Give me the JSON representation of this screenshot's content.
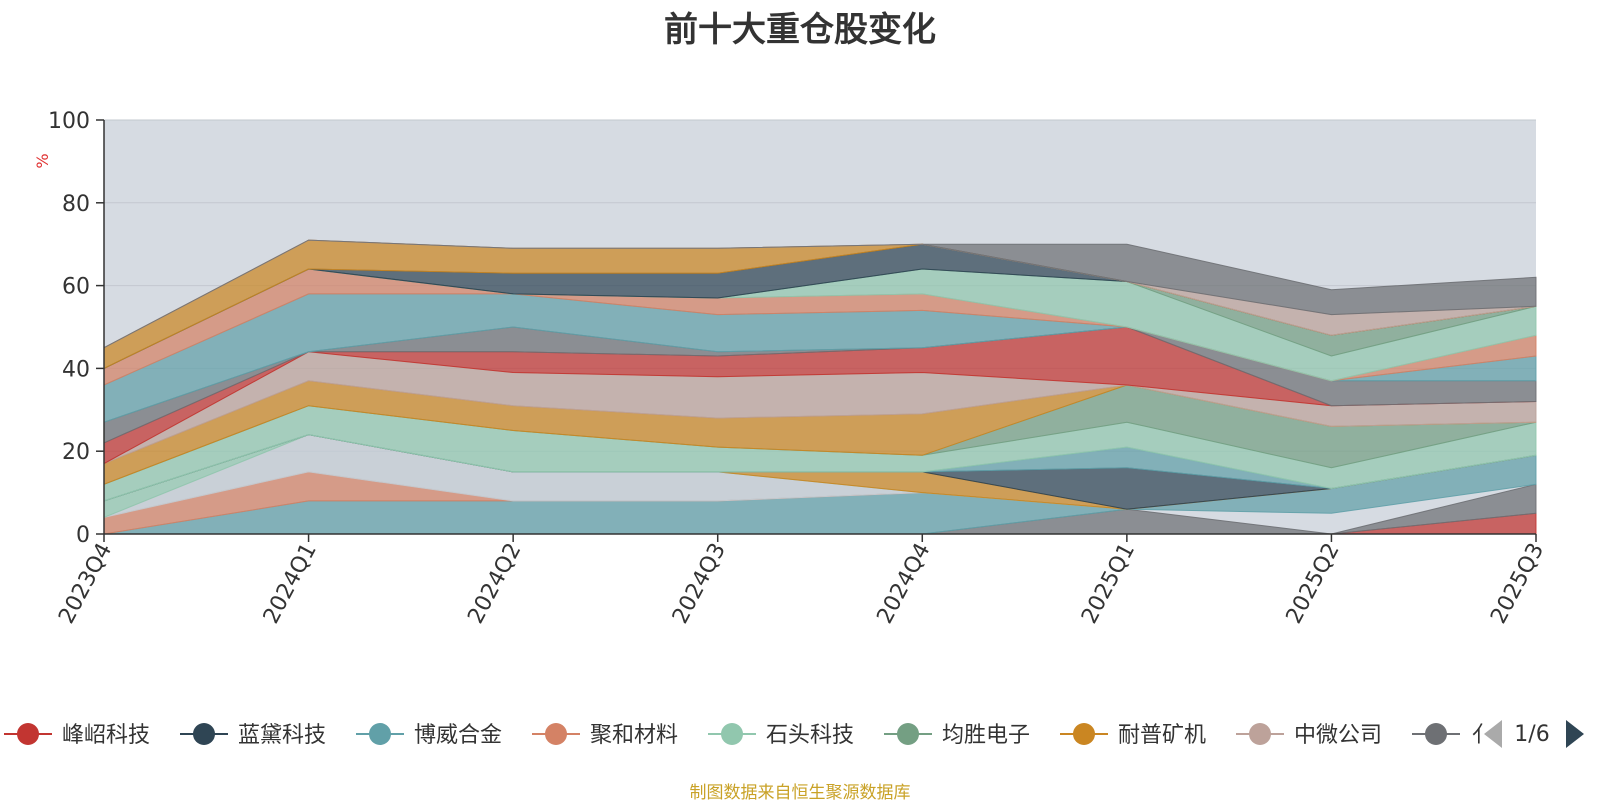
{
  "chart_data": {
    "type": "area",
    "title": "前十大重仓股变化",
    "ylabel": "%",
    "ylim": [
      0,
      100
    ],
    "yticks": [
      0,
      20,
      40,
      60,
      80,
      100
    ],
    "categories": [
      "2023Q4",
      "2024Q1",
      "2024Q2",
      "2024Q3",
      "2024Q4",
      "2025Q1",
      "2025Q2",
      "2025Q3"
    ],
    "grid": true,
    "legend_position": "bottom",
    "legend_page": "1/6",
    "layers": [
      {
        "name": "",
        "color": "#c23531",
        "lower": [
          0,
          0,
          0,
          0,
          0,
          0,
          0,
          0
        ],
        "upper": [
          0,
          0,
          0,
          0,
          0,
          0,
          0,
          5
        ]
      },
      {
        "name": "",
        "color": "#6e7074",
        "lower": [
          0,
          0,
          0,
          0,
          0,
          0,
          0,
          5
        ],
        "upper": [
          0,
          0,
          0,
          0,
          0,
          6,
          0,
          12
        ]
      },
      {
        "name": "",
        "color": "#61a0a8",
        "lower": [
          0,
          0,
          0,
          0,
          0,
          6,
          5,
          12
        ],
        "upper": [
          0,
          8,
          8,
          8,
          10,
          6,
          11,
          19
        ]
      },
      {
        "name": "",
        "color": "#d48265",
        "lower": [
          0,
          8,
          8,
          8,
          10,
          6,
          11,
          19
        ],
        "upper": [
          4,
          15,
          8,
          8,
          10,
          6,
          11,
          19
        ]
      },
      {
        "name": "",
        "color": "#c4ccd3",
        "lower": [
          4,
          15,
          8,
          8,
          10,
          6,
          11,
          19
        ],
        "upper": [
          4,
          24,
          15,
          15,
          10,
          6,
          11,
          19
        ]
      },
      {
        "name": "",
        "color": "#91c7ae",
        "lower": [
          4,
          24,
          15,
          15,
          10,
          6,
          11,
          19
        ],
        "upper": [
          8,
          24,
          15,
          15,
          10,
          6,
          11,
          19
        ]
      },
      {
        "name": "",
        "color": "#ca8622",
        "lower": [
          8,
          24,
          15,
          15,
          10,
          6,
          11,
          19
        ],
        "upper": [
          8,
          24,
          15,
          15,
          15,
          6,
          11,
          19
        ]
      },
      {
        "name": "",
        "color": "#2f4554",
        "lower": [
          8,
          24,
          15,
          15,
          15,
          6,
          11,
          19
        ],
        "upper": [
          8,
          24,
          15,
          15,
          15,
          16,
          11,
          19
        ]
      },
      {
        "name": "",
        "color": "#61a0a8",
        "lower": [
          8,
          24,
          15,
          15,
          15,
          16,
          11,
          19
        ],
        "upper": [
          8,
          24,
          15,
          15,
          15,
          21,
          11,
          19
        ]
      },
      {
        "name": "",
        "color": "#91c7ae",
        "lower": [
          8,
          24,
          15,
          15,
          15,
          21,
          11,
          19
        ],
        "upper": [
          12,
          31,
          25,
          21,
          19,
          27,
          16,
          27
        ]
      },
      {
        "name": "",
        "color": "#749f83",
        "lower": [
          12,
          31,
          25,
          21,
          19,
          27,
          16,
          27
        ],
        "upper": [
          12,
          31,
          25,
          21,
          19,
          36,
          26,
          27
        ]
      },
      {
        "name": "",
        "color": "#ca8622",
        "lower": [
          12,
          31,
          25,
          21,
          19,
          36,
          26,
          27
        ],
        "upper": [
          17,
          37,
          31,
          28,
          29,
          36,
          26,
          27
        ]
      },
      {
        "name": "",
        "color": "#bda29a",
        "lower": [
          17,
          37,
          31,
          28,
          29,
          36,
          26,
          27
        ],
        "upper": [
          17,
          44,
          39,
          38,
          39,
          36,
          31,
          32
        ]
      },
      {
        "name": "",
        "color": "#c23531",
        "lower": [
          17,
          44,
          39,
          38,
          39,
          36,
          31,
          32
        ],
        "upper": [
          22,
          44,
          44,
          43,
          45,
          50,
          31,
          32
        ]
      },
      {
        "name": "",
        "color": "#6e7074",
        "lower": [
          22,
          44,
          44,
          43,
          45,
          50,
          31,
          32
        ],
        "upper": [
          27,
          44,
          50,
          44,
          45,
          50,
          37,
          37
        ]
      },
      {
        "name": "",
        "color": "#61a0a8",
        "lower": [
          27,
          44,
          50,
          44,
          45,
          50,
          37,
          37
        ],
        "upper": [
          36,
          58,
          58,
          53,
          54,
          50,
          37,
          43
        ]
      },
      {
        "name": "",
        "color": "#d48265",
        "lower": [
          36,
          58,
          58,
          53,
          54,
          50,
          37,
          43
        ],
        "upper": [
          40,
          64,
          58,
          57,
          58,
          50,
          37,
          48
        ]
      },
      {
        "name": "",
        "color": "#91c7ae",
        "lower": [
          40,
          64,
          58,
          57,
          58,
          50,
          37,
          48
        ],
        "upper": [
          40,
          64,
          58,
          57,
          64,
          61,
          43,
          55
        ]
      },
      {
        "name": "",
        "color": "#749f83",
        "lower": [
          40,
          64,
          58,
          57,
          64,
          61,
          43,
          55
        ],
        "upper": [
          40,
          64,
          58,
          57,
          64,
          61,
          48,
          55
        ]
      },
      {
        "name": "",
        "color": "#2f4554",
        "lower": [
          40,
          64,
          58,
          57,
          64,
          61,
          48,
          55
        ],
        "upper": [
          40,
          64,
          63,
          63,
          70,
          61,
          48,
          55
        ]
      },
      {
        "name": "",
        "color": "#ca8622",
        "lower": [
          40,
          64,
          63,
          63,
          70,
          61,
          48,
          55
        ],
        "upper": [
          45,
          71,
          69,
          69,
          70,
          61,
          48,
          55
        ]
      },
      {
        "name": "",
        "color": "#bda29a",
        "lower": [
          45,
          71,
          69,
          69,
          70,
          61,
          48,
          55
        ],
        "upper": [
          45,
          71,
          69,
          69,
          70,
          61,
          53,
          55
        ]
      },
      {
        "name": "",
        "color": "#6e7074",
        "lower": [
          45,
          71,
          69,
          69,
          70,
          61,
          53,
          55
        ],
        "upper": [
          45,
          71,
          69,
          69,
          70,
          70,
          59,
          62
        ]
      }
    ]
  },
  "legend": {
    "items": [
      {
        "label": "峰岹科技",
        "color": "#c23531"
      },
      {
        "label": "蓝黛科技",
        "color": "#2f4554"
      },
      {
        "label": "博威合金",
        "color": "#61a0a8"
      },
      {
        "label": "聚和材料",
        "color": "#d48265"
      },
      {
        "label": "石头科技",
        "color": "#91c7ae"
      },
      {
        "label": "均胜电子",
        "color": "#749f83"
      },
      {
        "label": "耐普矿机",
        "color": "#ca8622"
      },
      {
        "label": "中微公司",
        "color": "#bda29a"
      },
      {
        "label": "",
        "color": "#6e7074"
      }
    ],
    "truncated_label": "亻",
    "page": "1/6",
    "prev_icon": "triangle-left-icon",
    "next_icon": "triangle-right-icon"
  },
  "source_note": "制图数据来自恒生聚源数据库"
}
